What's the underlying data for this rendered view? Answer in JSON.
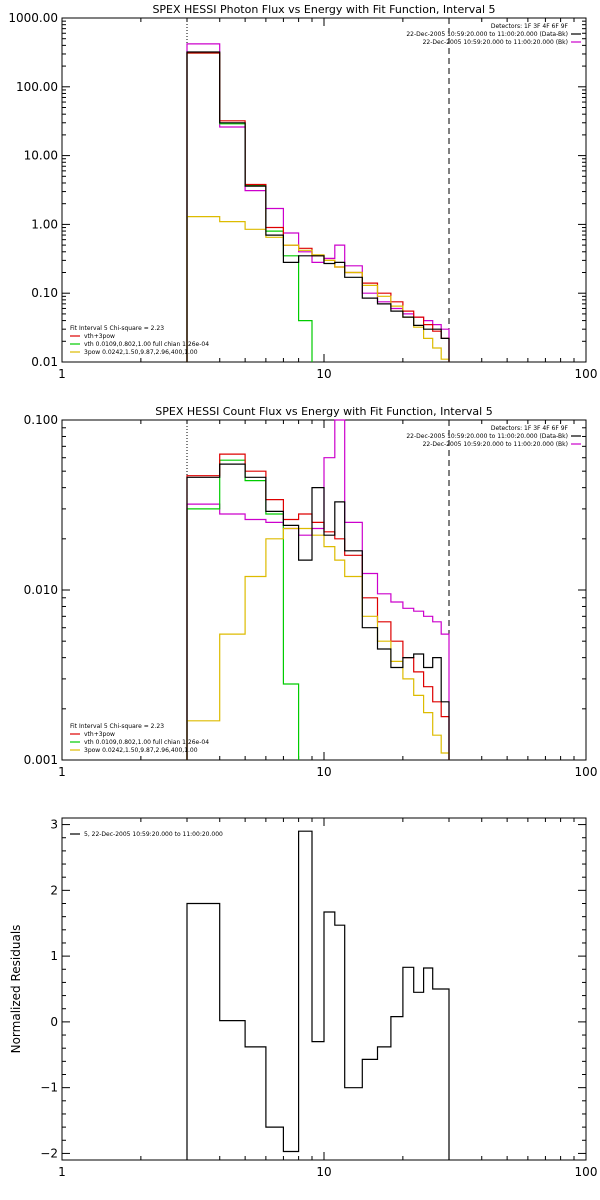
{
  "chart_data": [
    {
      "type": "line",
      "title": "SPEX HESSI Photon Flux vs Energy with Fit Function, Interval 5",
      "xscale": "log",
      "yscale": "log",
      "xlim": [
        1,
        100
      ],
      "ylim": [
        0.01,
        1000
      ],
      "xticks": [
        {
          "v": 1,
          "label": "1"
        },
        {
          "v": 10,
          "label": "10"
        },
        {
          "v": 100,
          "label": "100"
        }
      ],
      "yticks": [
        {
          "v": 0.01,
          "label": "0.01"
        },
        {
          "v": 0.1,
          "label": "0.10"
        },
        {
          "v": 1,
          "label": "1.00"
        },
        {
          "v": 10,
          "label": "10.00"
        },
        {
          "v": 100,
          "label": "100.00"
        },
        {
          "v": 1000,
          "label": "1000.00"
        }
      ],
      "vlines": [
        {
          "x": 3,
          "style": "dotted"
        },
        {
          "x": 30,
          "style": "dashed"
        }
      ],
      "top_legend": [
        {
          "text": "Detectors: 1F 3F 4F 6F 9F",
          "color": ""
        },
        {
          "text": "22-Dec-2005 10:59:20.000 to 11:00:20.000 (Data-Bk)",
          "color": "#000000"
        },
        {
          "text": "22-Dec-2005 10:59:20.000 to 11:00:20.000 (Bk)",
          "color": "#cc00cc"
        }
      ],
      "fit_legend": {
        "header": "Fit Interval 5   Chi-square = 2.23",
        "items": [
          {
            "text": "vth+3pow",
            "color": "#dd0000"
          },
          {
            "text": "vth 0.0109,0.802,1.00  full chian 1.26e-04",
            "color": "#00cc00"
          },
          {
            "text": "3pow 0.0242,1.50,9.87,2.96,400,1.00",
            "color": "#ddbb00"
          }
        ]
      },
      "bin_edges": [
        3,
        4,
        5,
        6,
        7,
        8,
        9,
        10,
        11,
        12,
        14,
        16,
        18,
        20,
        22,
        24,
        26,
        28,
        30
      ],
      "series": [
        {
          "color": "#cc00cc",
          "values": [
            420,
            26,
            3.1,
            1.7,
            0.75,
            0.4,
            0.28,
            0.32,
            0.5,
            0.25,
            0.1,
            0.075,
            0.06,
            0.05,
            0.045,
            0.04,
            0.035,
            0.03
          ]
        },
        {
          "color": "#00cc00",
          "values": [
            310,
            29,
            3.7,
            0.8,
            0.35,
            0.04,
            null,
            null,
            null,
            null,
            null,
            null,
            null,
            null,
            null,
            null,
            null,
            null
          ]
        },
        {
          "color": "#dd0000",
          "values": [
            310,
            32,
            3.8,
            0.9,
            0.5,
            0.45,
            0.35,
            0.3,
            0.24,
            0.2,
            0.14,
            0.1,
            0.075,
            0.055,
            0.045,
            0.035,
            0.028,
            0.022
          ]
        },
        {
          "color": "#ddbb00",
          "values": [
            1.3,
            1.1,
            0.85,
            0.65,
            0.5,
            0.42,
            0.36,
            0.3,
            0.24,
            0.2,
            0.13,
            0.09,
            0.065,
            0.045,
            0.032,
            0.022,
            0.016,
            0.011
          ]
        },
        {
          "color": "#000000",
          "values": [
            320,
            30,
            3.6,
            0.7,
            0.28,
            0.35,
            0.35,
            0.27,
            0.28,
            0.17,
            0.085,
            0.07,
            0.055,
            0.045,
            0.034,
            0.03,
            0.03,
            0.022
          ]
        }
      ]
    },
    {
      "type": "line",
      "title": "SPEX HESSI Count Flux vs Energy with Fit Function, Interval 5",
      "xscale": "log",
      "yscale": "log",
      "xlim": [
        1,
        100
      ],
      "ylim": [
        0.001,
        0.1
      ],
      "xticks": [
        {
          "v": 1,
          "label": "1"
        },
        {
          "v": 10,
          "label": "10"
        },
        {
          "v": 100,
          "label": "100"
        }
      ],
      "yticks": [
        {
          "v": 0.001,
          "label": "0.001"
        },
        {
          "v": 0.01,
          "label": "0.010"
        },
        {
          "v": 0.1,
          "label": "0.100"
        }
      ],
      "vlines": [
        {
          "x": 3,
          "style": "dotted"
        },
        {
          "x": 30,
          "style": "dashed"
        }
      ],
      "top_legend": [
        {
          "text": "Detectors: 1F 3F 4F 6F 9F",
          "color": ""
        },
        {
          "text": "22-Dec-2005 10:59:20.000 to 11:00:20.000 (Data-Bk)",
          "color": "#000000"
        },
        {
          "text": "22-Dec-2005 10:59:20.000 to 11:00:20.000 (Bk)",
          "color": "#cc00cc"
        }
      ],
      "fit_legend": {
        "header": "Fit Interval 5   Chi-square = 2.23",
        "items": [
          {
            "text": "vth+3pow",
            "color": "#dd0000"
          },
          {
            "text": "vth 0.0109,0.802,1.00  full chian 1.26e-04",
            "color": "#00cc00"
          },
          {
            "text": "3pow 0.0242,1.50,9.87,2.96,400,1.00",
            "color": "#ddbb00"
          }
        ]
      },
      "bin_edges": [
        3,
        4,
        5,
        6,
        7,
        8,
        9,
        10,
        11,
        12,
        14,
        16,
        18,
        20,
        22,
        24,
        26,
        28,
        30
      ],
      "series": [
        {
          "color": "#cc00cc",
          "values": [
            0.032,
            0.028,
            0.026,
            0.025,
            0.023,
            0.021,
            0.023,
            0.06,
            0.1,
            0.025,
            0.0125,
            0.0095,
            0.0085,
            0.0078,
            0.0075,
            0.007,
            0.0065,
            0.0055
          ]
        },
        {
          "color": "#00cc00",
          "values": [
            0.03,
            0.058,
            0.044,
            0.028,
            0.0028,
            null,
            null,
            null,
            null,
            null,
            null,
            null,
            null,
            null,
            null,
            null,
            null,
            null
          ]
        },
        {
          "color": "#dd0000",
          "values": [
            0.047,
            0.063,
            0.05,
            0.034,
            0.026,
            0.028,
            0.025,
            0.022,
            0.02,
            0.016,
            0.009,
            0.0065,
            0.005,
            0.004,
            0.0033,
            0.0027,
            0.0022,
            0.0018
          ]
        },
        {
          "color": "#ddbb00",
          "values": [
            0.0017,
            0.0055,
            0.012,
            0.02,
            0.023,
            0.023,
            0.021,
            0.018,
            0.015,
            0.012,
            0.007,
            0.005,
            0.0038,
            0.003,
            0.0024,
            0.0019,
            0.0014,
            0.0011
          ]
        },
        {
          "color": "#000000",
          "values": [
            0.046,
            0.055,
            0.046,
            0.029,
            0.024,
            0.015,
            0.04,
            0.021,
            0.033,
            0.017,
            0.006,
            0.0045,
            0.0035,
            0.004,
            0.0042,
            0.0035,
            0.004,
            0.0022
          ]
        }
      ]
    },
    {
      "type": "line",
      "title": "",
      "xscale": "log",
      "yscale": "linear",
      "xlim": [
        1,
        100
      ],
      "ylim": [
        -2.1,
        3.1
      ],
      "ylabel": "Normalized Residuals",
      "xticks": [
        {
          "v": 1,
          "label": "1"
        },
        {
          "v": 10,
          "label": "10"
        },
        {
          "v": 100,
          "label": "100"
        }
      ],
      "yticks": [
        {
          "v": -2,
          "label": "−2"
        },
        {
          "v": -1,
          "label": "−1"
        },
        {
          "v": 0,
          "label": "0"
        },
        {
          "v": 1,
          "label": "1"
        },
        {
          "v": 2,
          "label": "2"
        },
        {
          "v": 3,
          "label": "3"
        }
      ],
      "legend": {
        "text": "5, 22-Dec-2005 10:59:20.000 to 11:00:20.000",
        "color": "#000000"
      },
      "bin_edges": [
        3,
        4,
        5,
        6,
        7,
        8,
        9,
        10,
        11,
        12,
        14,
        16,
        18,
        20,
        22,
        24,
        26,
        28,
        30
      ],
      "series": [
        {
          "color": "#000000",
          "values": [
            1.8,
            0.02,
            -0.38,
            -1.6,
            -1.97,
            2.9,
            -0.3,
            1.67,
            1.47,
            -1.0,
            -0.57,
            -0.38,
            0.08,
            0.83,
            0.45,
            0.82,
            0.5,
            0.5
          ]
        }
      ]
    }
  ]
}
